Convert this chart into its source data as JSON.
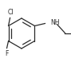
{
  "bg_color": "#ffffff",
  "line_color": "#2a2a2a",
  "text_color": "#2a2a2a",
  "lw": 0.9,
  "figsize": [
    0.89,
    0.88
  ],
  "dpi": 100,
  "cl_label": "Cl",
  "f_label": "F",
  "nh_label": "NH",
  "fontsize": 5.5
}
